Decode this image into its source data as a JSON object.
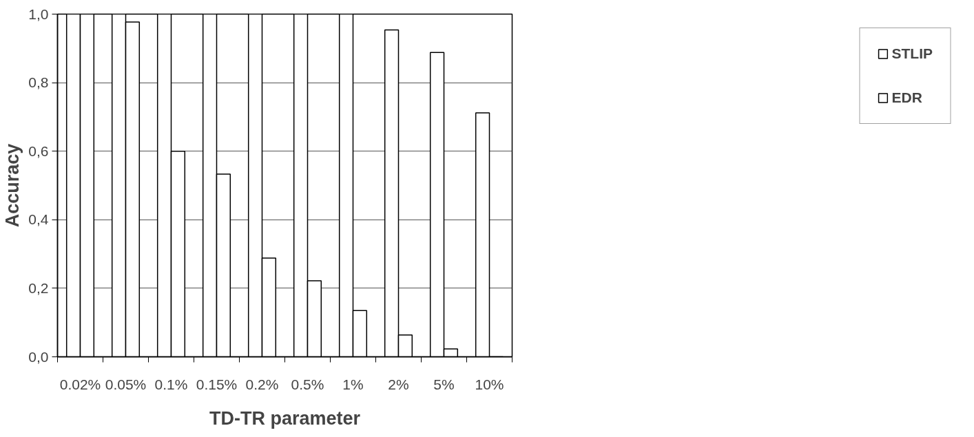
{
  "chart_data": {
    "type": "bar",
    "xlabel": "TD-TR parameter",
    "ylabel": "Accuracy",
    "categories": [
      "0.02%",
      "0.05%",
      "0.1%",
      "0.15%",
      "0.2%",
      "0.5%",
      "1%",
      "2%",
      "5%",
      "10%"
    ],
    "series": [
      {
        "name": "STLIP",
        "color": "#ffffff",
        "values": [
          1.0,
          1.0,
          1.0,
          1.0,
          1.0,
          1.0,
          1.0,
          0.954,
          0.888,
          0.712
        ]
      },
      {
        "name": "EDR",
        "color": "#ffffff",
        "values": [
          1.0,
          0.977,
          0.6,
          0.533,
          0.288,
          0.222,
          0.135,
          0.064,
          0.023,
          0.0
        ]
      }
    ],
    "ylim": [
      0,
      1
    ],
    "yticks": [
      {
        "value": 0,
        "label": "0,0"
      },
      {
        "value": 0.2,
        "label": "0,2"
      },
      {
        "value": 0.4,
        "label": "0,4"
      },
      {
        "value": 0.6,
        "label": "0,6"
      },
      {
        "value": 0.8,
        "label": "0,8"
      },
      {
        "value": 1,
        "label": "1,0"
      }
    ],
    "grid": "y",
    "legend": "right"
  }
}
